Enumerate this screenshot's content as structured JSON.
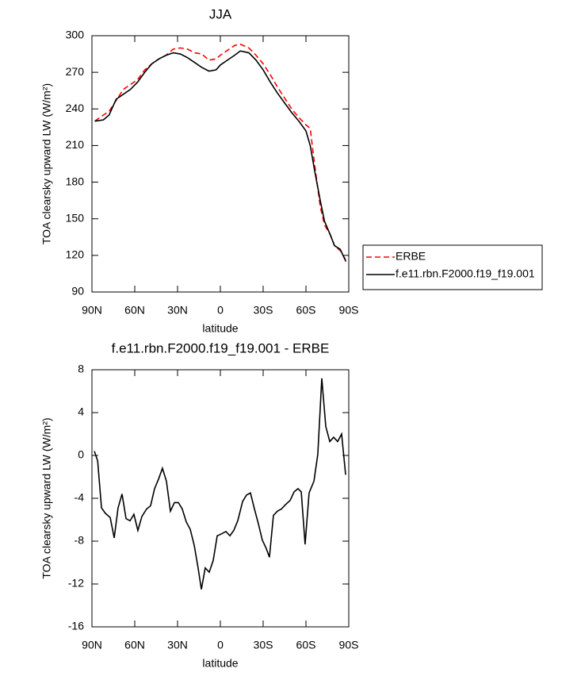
{
  "chart_data": [
    {
      "type": "line",
      "title": "JJA",
      "xlabel": "latitude",
      "ylabel": "TOA clearsky upward LW (W/m²)",
      "x": [
        88,
        82,
        78,
        73,
        68,
        63,
        58,
        53,
        48,
        43,
        38,
        33,
        28,
        23,
        18,
        13,
        8,
        3,
        0,
        -5,
        -10,
        -14,
        -20,
        -25,
        -30,
        -35,
        -40,
        -45,
        -50,
        -55,
        -60,
        -63,
        -66,
        -70,
        -73,
        -77,
        -80,
        -84,
        -88
      ],
      "series": [
        {
          "name": "ERBE",
          "color": "#ff0000",
          "dashed": true,
          "values": [
            230,
            235,
            238,
            247,
            256,
            260,
            264,
            272,
            277,
            281,
            284,
            289,
            290,
            289,
            286,
            285,
            280,
            281,
            284,
            288,
            292,
            293,
            290,
            284,
            277,
            268,
            258,
            249,
            240,
            233,
            227,
            224,
            195,
            160,
            145,
            137,
            128,
            124,
            116
          ]
        },
        {
          "name": "f.e11.rbn.F2000.f19_f19.001",
          "color": "#000000",
          "dashed": false,
          "values": [
            230,
            231,
            235,
            248,
            252,
            256,
            262,
            270,
            277,
            281,
            284,
            286,
            285,
            282,
            278,
            274,
            271,
            272,
            276,
            280,
            284,
            287.5,
            286,
            280,
            272,
            262,
            253,
            245,
            237,
            230,
            222,
            210,
            190,
            165,
            148,
            137,
            128,
            125,
            115
          ]
        }
      ],
      "xlim": [
        90,
        -90
      ],
      "xticks": [
        {
          "value": 90,
          "label": "90N"
        },
        {
          "value": 60,
          "label": "60N"
        },
        {
          "value": 30,
          "label": "30N"
        },
        0,
        {
          "value": -30,
          "label": "30S"
        },
        {
          "value": -60,
          "label": "60S"
        },
        {
          "value": -90,
          "label": "90S"
        }
      ],
      "ylim": [
        90,
        300
      ],
      "yticks": [
        90,
        120,
        150,
        180,
        210,
        240,
        270,
        300
      ],
      "legend": "right"
    },
    {
      "type": "line",
      "title": "f.e11.rbn.F2000.f19_f19.001 - ERBE",
      "xlabel": "latitude",
      "ylabel": "TOA clearsky upward LW (W/m²)",
      "x": [
        88.3,
        86,
        83.3,
        80.6,
        77.2,
        74.4,
        71.7,
        68.9,
        66.1,
        63.3,
        60.6,
        57.8,
        55,
        51.7,
        48.9,
        46.1,
        43.3,
        40.6,
        37.8,
        35,
        32.2,
        29.4,
        26.7,
        23.9,
        21.1,
        18.3,
        15.6,
        13.3,
        10.6,
        7.8,
        5,
        2.2,
        -1.1,
        -3.9,
        -6.7,
        -9.4,
        -12.2,
        -15.6,
        -18.3,
        -21.1,
        -23.9,
        -26.7,
        -29.4,
        -32.2,
        -34.4,
        -37.2,
        -40,
        -42.8,
        -45.6,
        -48.9,
        -51.7,
        -54.4,
        -56.7,
        -59.4,
        -62.2,
        -65.6,
        -68.3,
        -71.1,
        -73.9,
        -76.7,
        -79.4,
        -82.2,
        -85,
        -87.8
      ],
      "color": "#000000",
      "values": [
        0.4,
        -0.5,
        -4.9,
        -5.4,
        -5.8,
        -7.7,
        -4.9,
        -3.6,
        -5.9,
        -6.1,
        -5.5,
        -7.0,
        -5.7,
        -5.0,
        -4.7,
        -3.1,
        -2.2,
        -1.2,
        -2.4,
        -5.2,
        -4.4,
        -4.4,
        -5.0,
        -6.2,
        -6.9,
        -8.4,
        -10.5,
        -12.5,
        -10.5,
        -10.9,
        -9.8,
        -7.5,
        -7.3,
        -7.1,
        -7.5,
        -7.0,
        -6.1,
        -4.3,
        -3.7,
        -3.5,
        -5.0,
        -6.4,
        -7.9,
        -8.7,
        -9.5,
        -5.6,
        -5.2,
        -5.0,
        -4.6,
        -4.2,
        -3.4,
        -3.1,
        -3.4,
        -8.3,
        -3.5,
        -2.4,
        0.1,
        7.2,
        2.7,
        1.3,
        1.7,
        1.3,
        2.0,
        -1.8
      ],
      "xlim": [
        90,
        -90
      ],
      "xticks": [
        {
          "value": 90,
          "label": "90N"
        },
        {
          "value": 60,
          "label": "60N"
        },
        {
          "value": 30,
          "label": "30N"
        },
        0,
        {
          "value": -30,
          "label": "30S"
        },
        {
          "value": -60,
          "label": "60S"
        },
        {
          "value": -90,
          "label": "90S"
        }
      ],
      "ylim": [
        -16,
        8
      ],
      "yticks": [
        -16,
        -12,
        -8,
        -4,
        0,
        4,
        8
      ]
    }
  ]
}
